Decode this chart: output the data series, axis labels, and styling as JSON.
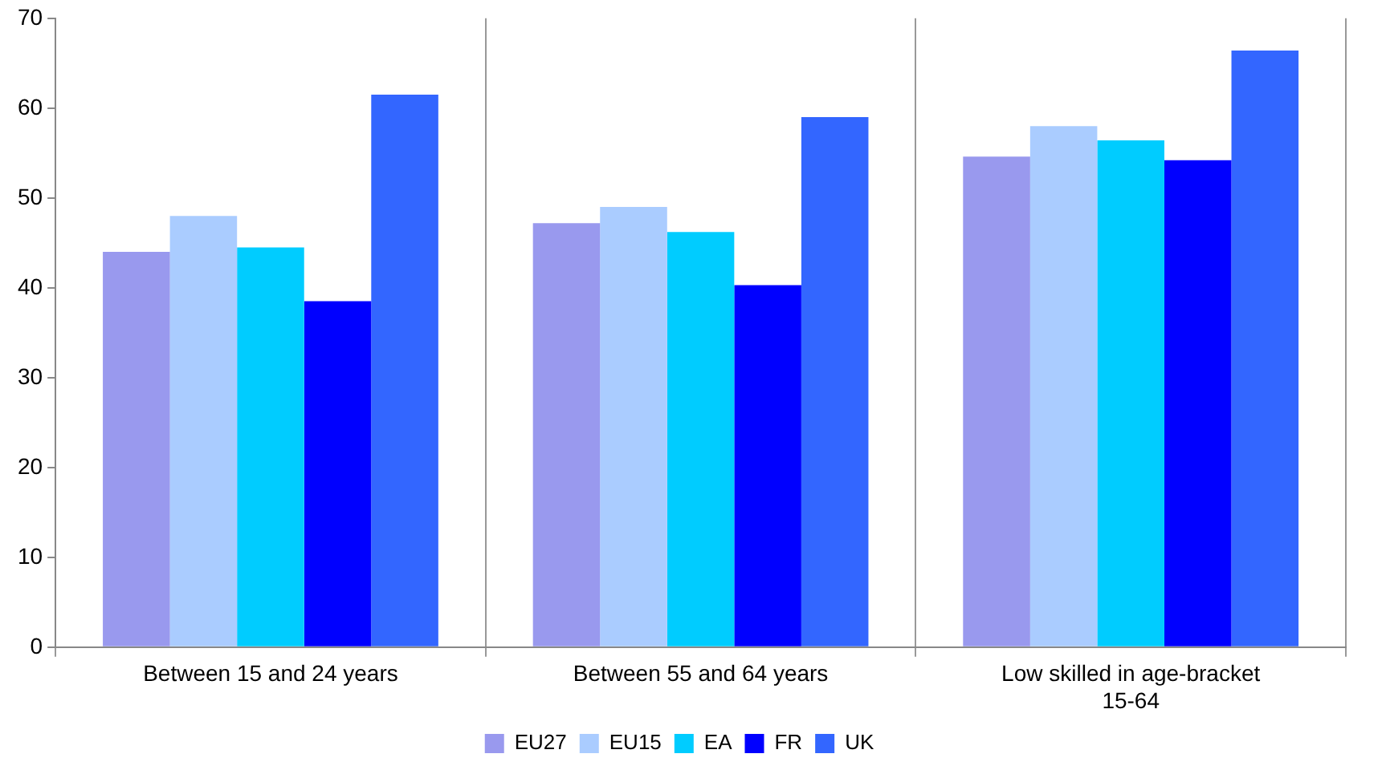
{
  "chart_data": {
    "type": "bar",
    "categories": [
      "Between 15 and 24 years",
      "Between 55 and 64 years",
      "Low skilled in age-bracket 15-64"
    ],
    "series": [
      {
        "name": "EU27",
        "color": "#9999ee",
        "values": [
          44,
          47.2,
          54.6
        ]
      },
      {
        "name": "EU15",
        "color": "#aaccff",
        "values": [
          48,
          49,
          58
        ]
      },
      {
        "name": "EA",
        "color": "#00ccff",
        "values": [
          44.5,
          46.2,
          56.4
        ]
      },
      {
        "name": "FR",
        "color": "#0000ff",
        "values": [
          38.5,
          40.3,
          54.2
        ]
      },
      {
        "name": "UK",
        "color": "#3366ff",
        "values": [
          61.5,
          59,
          66.4
        ]
      }
    ],
    "ylim": [
      0,
      70
    ],
    "yticks": [
      0,
      10,
      20,
      30,
      40,
      50,
      60,
      70
    ],
    "grid": "x",
    "legend": "bottom"
  }
}
